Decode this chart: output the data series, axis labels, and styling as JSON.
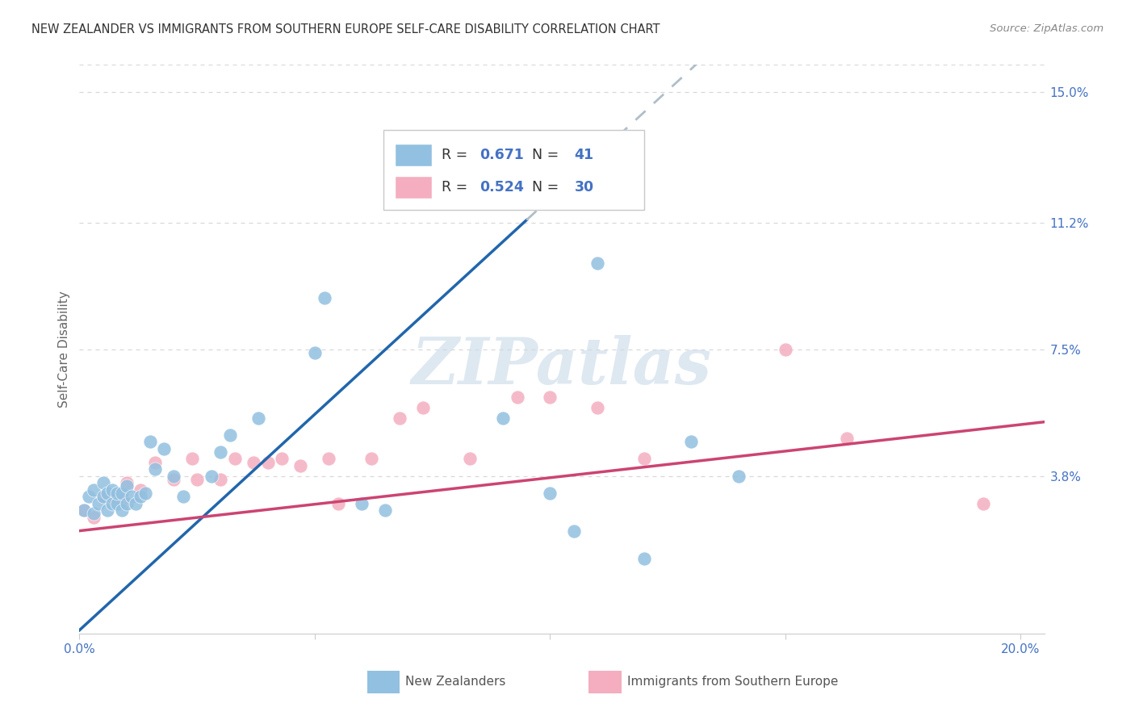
{
  "title": "NEW ZEALANDER VS IMMIGRANTS FROM SOUTHERN EUROPE SELF-CARE DISABILITY CORRELATION CHART",
  "source": "Source: ZipAtlas.com",
  "ylabel": "Self-Care Disability",
  "xlim": [
    0.0,
    0.205
  ],
  "ylim": [
    -0.008,
    0.158
  ],
  "xticks": [
    0.0,
    0.05,
    0.1,
    0.15,
    0.2
  ],
  "xticklabels": [
    "0.0%",
    "",
    "",
    "",
    "20.0%"
  ],
  "right_ytick_vals": [
    0.038,
    0.075,
    0.112,
    0.15
  ],
  "right_yticklabels": [
    "3.8%",
    "7.5%",
    "11.2%",
    "15.0%"
  ],
  "blue_fill": "#92c0e0",
  "blue_line": "#2166ac",
  "pink_fill": "#f4aec0",
  "pink_line": "#cc4472",
  "dashed_color": "#b0bec8",
  "grid_color": "#d8d8d8",
  "tick_color": "#4472c4",
  "legend_text_color": "#333333",
  "legend_num_color": "#4472c4",
  "source_color": "#888888",
  "title_color": "#333333",
  "legend_R1": "0.671",
  "legend_N1": "41",
  "legend_R2": "0.524",
  "legend_N2": "30",
  "blue_x": [
    0.001,
    0.002,
    0.003,
    0.003,
    0.004,
    0.005,
    0.005,
    0.006,
    0.006,
    0.007,
    0.007,
    0.008,
    0.008,
    0.009,
    0.009,
    0.01,
    0.01,
    0.011,
    0.012,
    0.013,
    0.014,
    0.015,
    0.016,
    0.018,
    0.02,
    0.022,
    0.028,
    0.03,
    0.032,
    0.038,
    0.05,
    0.052,
    0.06,
    0.065,
    0.09,
    0.1,
    0.105,
    0.11,
    0.12,
    0.13,
    0.14
  ],
  "blue_y": [
    0.028,
    0.032,
    0.027,
    0.034,
    0.03,
    0.032,
    0.036,
    0.028,
    0.033,
    0.03,
    0.034,
    0.03,
    0.033,
    0.028,
    0.033,
    0.03,
    0.035,
    0.032,
    0.03,
    0.032,
    0.033,
    0.048,
    0.04,
    0.046,
    0.038,
    0.032,
    0.038,
    0.045,
    0.05,
    0.055,
    0.074,
    0.09,
    0.03,
    0.028,
    0.055,
    0.033,
    0.022,
    0.1,
    0.014,
    0.048,
    0.038
  ],
  "pink_x": [
    0.001,
    0.003,
    0.005,
    0.007,
    0.009,
    0.01,
    0.013,
    0.016,
    0.02,
    0.024,
    0.025,
    0.03,
    0.033,
    0.037,
    0.04,
    0.043,
    0.047,
    0.053,
    0.055,
    0.062,
    0.068,
    0.073,
    0.083,
    0.093,
    0.1,
    0.11,
    0.12,
    0.15,
    0.163,
    0.192
  ],
  "pink_y": [
    0.028,
    0.026,
    0.032,
    0.032,
    0.031,
    0.036,
    0.034,
    0.042,
    0.037,
    0.043,
    0.037,
    0.037,
    0.043,
    0.042,
    0.042,
    0.043,
    0.041,
    0.043,
    0.03,
    0.043,
    0.055,
    0.058,
    0.043,
    0.061,
    0.061,
    0.058,
    0.043,
    0.075,
    0.049,
    0.03
  ],
  "watermark": "ZIPatlas",
  "title_fontsize": 10.5,
  "tick_fontsize": 11,
  "legend_fontsize": 12.5,
  "ylabel_fontsize": 11,
  "source_fontsize": 9.5,
  "blue_line_end_solid": 0.095,
  "blue_line_start_dashed": 0.095,
  "blue_line_end_dashed": 0.205
}
